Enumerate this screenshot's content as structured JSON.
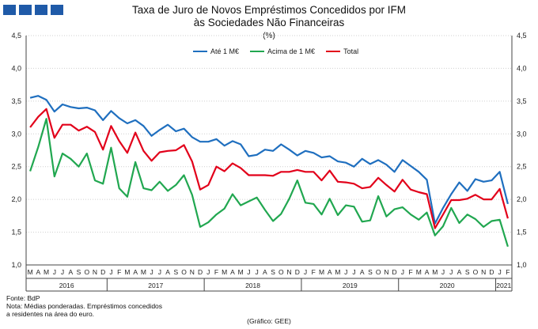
{
  "header": {
    "title_line1": "Taxa de Juro de Novos Empréstimos Concedidos por IFM",
    "title_line2": "às Sociedades Não Financeiras",
    "unit": "(%)"
  },
  "footer": {
    "source": "Fonte: BdP",
    "note1": "Nota: Médias ponderadas. Empréstimos concedidos",
    "note2": "a residentes na área do euro.",
    "credit": "(Gráfico: GEE)"
  },
  "chart_data": {
    "type": "line",
    "title": "Taxa de Juro de Novos Empréstimos Concedidos por IFM às Sociedades Não Financeiras",
    "ylabel": "(%)",
    "ylim": [
      1.0,
      4.5
    ],
    "yticks": [
      "1,0",
      "1,5",
      "2,0",
      "2,5",
      "3,0",
      "3,5",
      "4,0",
      "4,5"
    ],
    "y_tick_values": [
      1.0,
      1.5,
      2.0,
      2.5,
      3.0,
      3.5,
      4.0,
      4.5
    ],
    "grid": true,
    "legend_position": "top-center",
    "x": [
      "M",
      "A",
      "M",
      "J",
      "J",
      "A",
      "S",
      "O",
      "N",
      "D",
      "J",
      "F",
      "M",
      "A",
      "M",
      "J",
      "J",
      "A",
      "S",
      "O",
      "N",
      "D",
      "J",
      "F",
      "M",
      "A",
      "M",
      "J",
      "J",
      "A",
      "S",
      "O",
      "N",
      "D",
      "J",
      "F",
      "M",
      "A",
      "M",
      "J",
      "J",
      "A",
      "S",
      "O",
      "N",
      "D",
      "J",
      "F",
      "M",
      "A",
      "M",
      "J",
      "J",
      "A",
      "S",
      "O",
      "N",
      "D",
      "J",
      "F"
    ],
    "years": [
      {
        "label": "2016",
        "start": 0,
        "end": 9
      },
      {
        "label": "2017",
        "start": 10,
        "end": 21
      },
      {
        "label": "2018",
        "start": 22,
        "end": 33
      },
      {
        "label": "2019",
        "start": 34,
        "end": 45
      },
      {
        "label": "2020",
        "start": 46,
        "end": 57
      },
      {
        "label": "2021",
        "start": 58,
        "end": 59
      }
    ],
    "series": [
      {
        "name": "Até 1 M€",
        "color": "#1f6fbf",
        "values": [
          3.55,
          3.58,
          3.52,
          3.34,
          3.45,
          3.41,
          3.39,
          3.4,
          3.36,
          3.21,
          3.35,
          3.24,
          3.16,
          3.21,
          3.12,
          2.97,
          3.06,
          3.14,
          3.04,
          3.08,
          2.95,
          2.88,
          2.88,
          2.92,
          2.82,
          2.89,
          2.84,
          2.66,
          2.68,
          2.76,
          2.74,
          2.84,
          2.76,
          2.67,
          2.74,
          2.71,
          2.64,
          2.66,
          2.58,
          2.56,
          2.5,
          2.62,
          2.54,
          2.6,
          2.53,
          2.42,
          2.6,
          2.51,
          2.42,
          2.3,
          1.63,
          1.87,
          2.08,
          2.26,
          2.13,
          2.31,
          2.27,
          2.29,
          2.42,
          1.93
        ]
      },
      {
        "name": "Acima de 1 M€",
        "color": "#21a750",
        "values": [
          2.43,
          2.8,
          3.23,
          2.35,
          2.7,
          2.62,
          2.5,
          2.7,
          2.29,
          2.24,
          2.79,
          2.17,
          2.04,
          2.57,
          2.17,
          2.14,
          2.27,
          2.13,
          2.22,
          2.37,
          2.07,
          1.58,
          1.65,
          1.77,
          1.86,
          2.08,
          1.91,
          1.97,
          2.03,
          1.84,
          1.67,
          1.78,
          2.01,
          2.29,
          1.95,
          1.93,
          1.77,
          2.01,
          1.76,
          1.91,
          1.89,
          1.66,
          1.68,
          2.05,
          1.74,
          1.85,
          1.88,
          1.77,
          1.69,
          1.8,
          1.45,
          1.59,
          1.87,
          1.64,
          1.77,
          1.7,
          1.58,
          1.67,
          1.69,
          1.28
        ]
      },
      {
        "name": "Total",
        "color": "#e2001a",
        "values": [
          3.1,
          3.26,
          3.38,
          2.94,
          3.14,
          3.14,
          3.05,
          3.11,
          3.03,
          2.76,
          3.12,
          2.89,
          2.71,
          3.02,
          2.74,
          2.59,
          2.72,
          2.74,
          2.75,
          2.83,
          2.58,
          2.15,
          2.22,
          2.5,
          2.43,
          2.55,
          2.48,
          2.37,
          2.37,
          2.37,
          2.36,
          2.42,
          2.42,
          2.45,
          2.42,
          2.42,
          2.29,
          2.44,
          2.27,
          2.26,
          2.24,
          2.17,
          2.19,
          2.33,
          2.22,
          2.12,
          2.3,
          2.15,
          2.11,
          2.08,
          1.56,
          1.77,
          1.99,
          1.99,
          2.01,
          2.07,
          2.0,
          2.0,
          2.16,
          1.71
        ]
      }
    ]
  }
}
